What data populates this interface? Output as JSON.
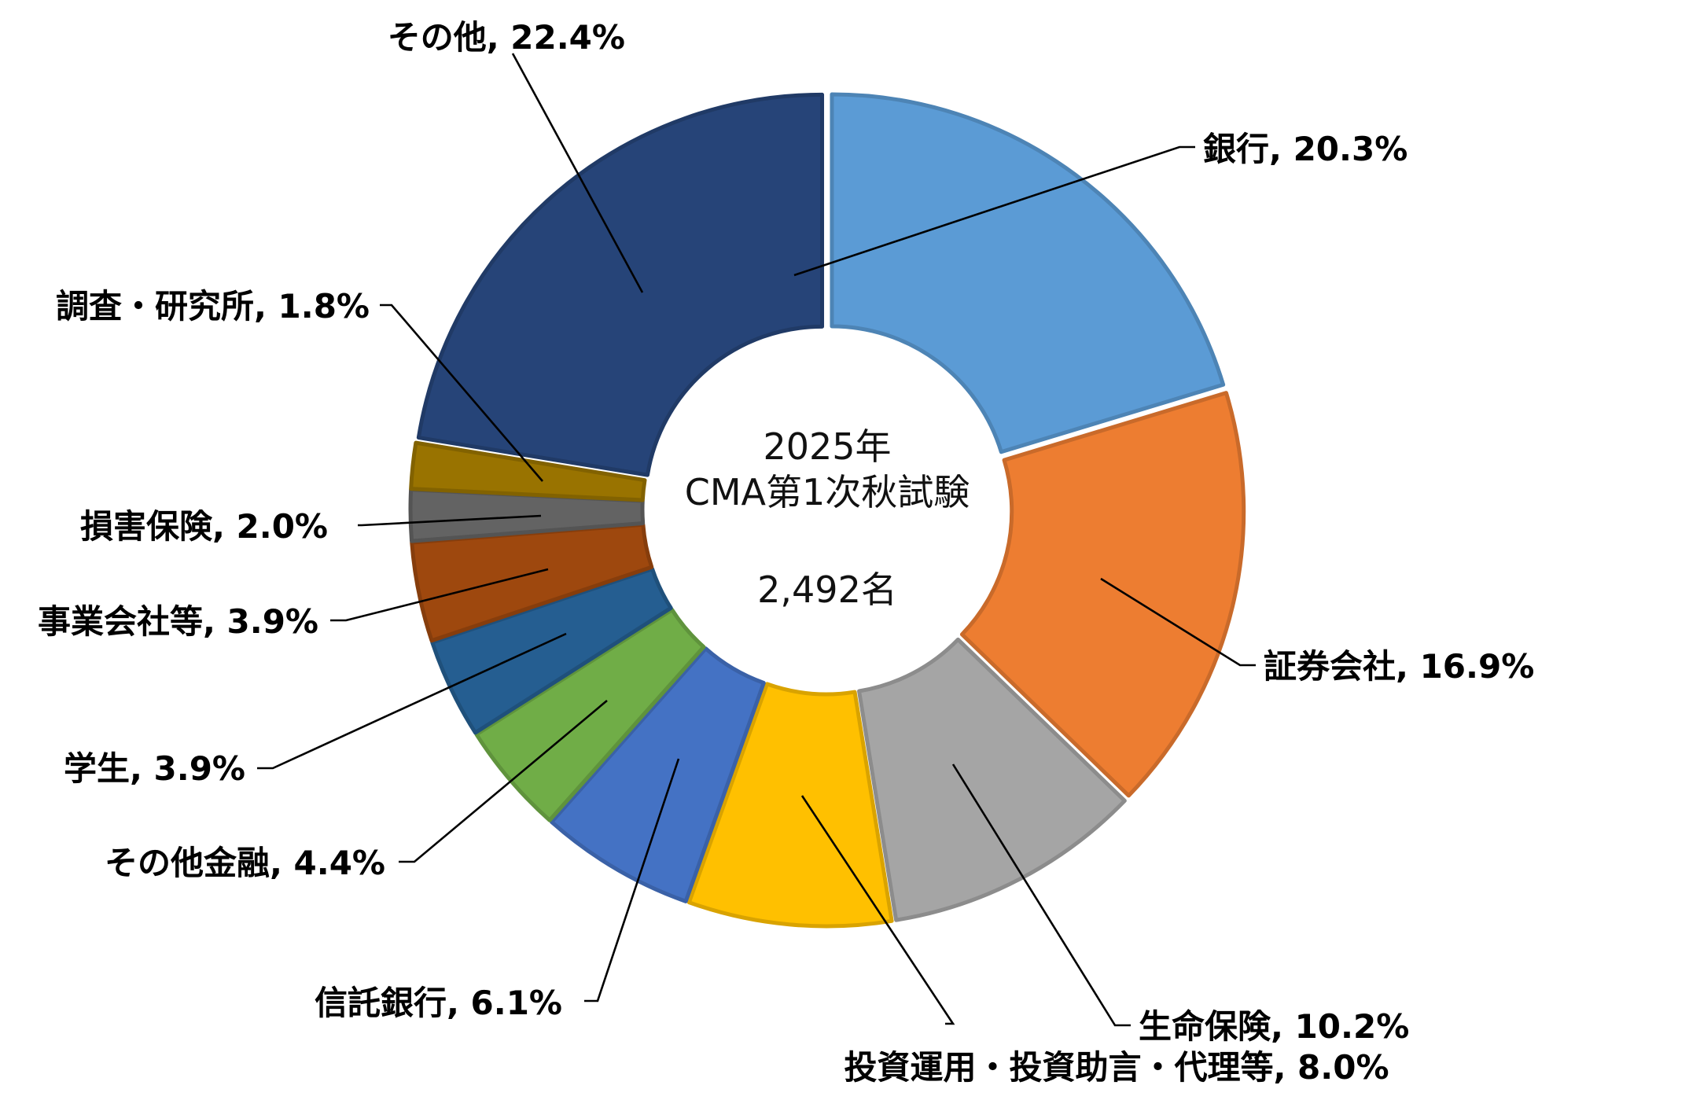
{
  "chart_data": {
    "type": "pie",
    "center_title_line1": "2025年",
    "center_title_line2": "CMA第1次秋試験",
    "center_total": "2,492名",
    "slices": [
      {
        "name": "銀行",
        "value": 20.3,
        "label": "銀行, 20.3%",
        "color": "#5B9BD5"
      },
      {
        "name": "証券会社",
        "value": 16.9,
        "label": "証券会社, 16.9%",
        "color": "#ED7D31"
      },
      {
        "name": "生命保険",
        "value": 10.2,
        "label": "生命保険, 10.2%",
        "color": "#A5A5A5"
      },
      {
        "name": "投資運用・投資助言・代理等",
        "value": 8.0,
        "label": "投資運用・投資助言・代理等, 8.0%",
        "color": "#FFC000"
      },
      {
        "name": "信託銀行",
        "value": 6.1,
        "label": "信託銀行, 6.1%",
        "color": "#4472C4"
      },
      {
        "name": "その他金融",
        "value": 4.4,
        "label": "その他金融, 4.4%",
        "color": "#70AD47"
      },
      {
        "name": "学生",
        "value": 3.9,
        "label": "学生, 3.9%",
        "color": "#255E91"
      },
      {
        "name": "事業会社等",
        "value": 3.9,
        "label": "事業会社等, 3.9%",
        "color": "#9E480E"
      },
      {
        "name": "損害保険",
        "value": 2.0,
        "label": "損害保険, 2.0%",
        "color": "#636363"
      },
      {
        "name": "調査・研究所",
        "value": 1.8,
        "label": "調査・研究所, 1.8%",
        "color": "#997300"
      },
      {
        "name": "その他",
        "value": 22.4,
        "label": "その他, 22.4%",
        "color": "#264478"
      }
    ]
  }
}
